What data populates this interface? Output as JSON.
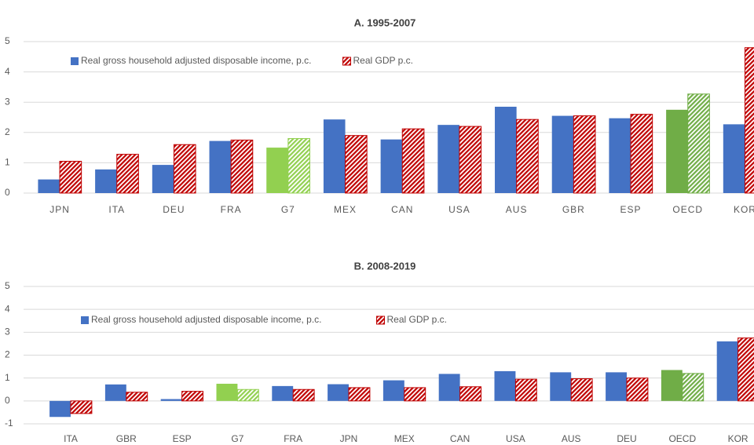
{
  "chart_data": [
    {
      "type": "bar",
      "title": "A. 1995-2007",
      "categories": [
        "JPN",
        "ITA",
        "DEU",
        "FRA",
        "G7",
        "MEX",
        "CAN",
        "USA",
        "AUS",
        "GBR",
        "ESP",
        "OECD",
        "KOR"
      ],
      "series": [
        {
          "name": "Real gross household adjusted disposable income, p.c.",
          "color": "#4472c4",
          "pattern": "solid",
          "colors": [
            "#4472c4",
            "#4472c4",
            "#4472c4",
            "#4472c4",
            "#92d050",
            "#4472c4",
            "#4472c4",
            "#4472c4",
            "#4472c4",
            "#4472c4",
            "#4472c4",
            "#70ad47",
            "#4472c4"
          ],
          "values": [
            0.45,
            0.78,
            0.93,
            1.72,
            1.5,
            2.43,
            1.77,
            2.25,
            2.85,
            2.55,
            2.47,
            2.75,
            2.27
          ]
        },
        {
          "name": "Real GDP p.c.",
          "color": "#c00000",
          "pattern": "hatch",
          "colors": [
            "#c00000",
            "#c00000",
            "#c00000",
            "#c00000",
            "#92d050",
            "#c00000",
            "#c00000",
            "#c00000",
            "#c00000",
            "#c00000",
            "#c00000",
            "#70ad47",
            "#c00000"
          ],
          "values": [
            1.05,
            1.28,
            1.6,
            1.75,
            1.8,
            1.9,
            2.12,
            2.2,
            2.43,
            2.55,
            2.6,
            3.27,
            4.8
          ]
        }
      ],
      "ylim": [
        0,
        5
      ],
      "yticks": [
        0,
        1,
        2,
        3,
        4,
        5
      ],
      "grid": true,
      "legend": "top-left"
    },
    {
      "type": "bar",
      "title": "B. 2008-2019",
      "categories": [
        "ITA",
        "GBR",
        "ESP",
        "G7",
        "FRA",
        "JPN",
        "MEX",
        "CAN",
        "USA",
        "AUS",
        "DEU",
        "OECD",
        "KOR"
      ],
      "series": [
        {
          "name": "Real gross household adjusted disposable income, p.c.",
          "color": "#4472c4",
          "pattern": "solid",
          "colors": [
            "#4472c4",
            "#4472c4",
            "#4472c4",
            "#92d050",
            "#4472c4",
            "#4472c4",
            "#4472c4",
            "#4472c4",
            "#4472c4",
            "#4472c4",
            "#4472c4",
            "#70ad47",
            "#4472c4"
          ],
          "values": [
            -0.7,
            0.72,
            0.08,
            0.75,
            0.65,
            0.73,
            0.9,
            1.18,
            1.3,
            1.25,
            1.25,
            1.35,
            2.6
          ]
        },
        {
          "name": "Real GDP p.c.",
          "color": "#c00000",
          "pattern": "hatch",
          "colors": [
            "#c00000",
            "#c00000",
            "#c00000",
            "#92d050",
            "#c00000",
            "#c00000",
            "#c00000",
            "#c00000",
            "#c00000",
            "#c00000",
            "#c00000",
            "#70ad47",
            "#c00000"
          ],
          "values": [
            -0.55,
            0.38,
            0.42,
            0.5,
            0.5,
            0.58,
            0.58,
            0.62,
            0.95,
            0.97,
            1.0,
            1.2,
            2.75
          ]
        }
      ],
      "ylim": [
        -1,
        5
      ],
      "yticks": [
        -1,
        0,
        1,
        2,
        3,
        4,
        5
      ],
      "grid": true,
      "legend": "top-left"
    }
  ]
}
